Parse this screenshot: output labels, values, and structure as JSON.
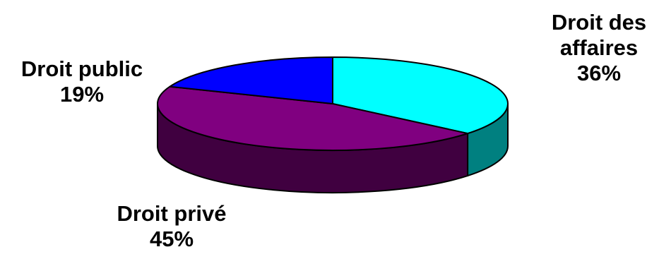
{
  "chart_data": {
    "type": "pie",
    "style": "3d",
    "title": "",
    "slices": [
      {
        "label": "Droit des affaires",
        "label_lines": [
          "Droit des",
          "affaires"
        ],
        "value": 36,
        "value_label": "36%",
        "color": "#00FFFF",
        "side_color": "#008080"
      },
      {
        "label": "Droit privé",
        "label_lines": [
          "Droit privé"
        ],
        "value": 45,
        "value_label": "45%",
        "color": "#800080",
        "side_color": "#400040"
      },
      {
        "label": "Droit public",
        "label_lines": [
          "Droit public"
        ],
        "value": 19,
        "value_label": "19%",
        "color": "#0000FF",
        "side_color": "#000080"
      }
    ],
    "legend": "none",
    "data_labels": "outside"
  }
}
